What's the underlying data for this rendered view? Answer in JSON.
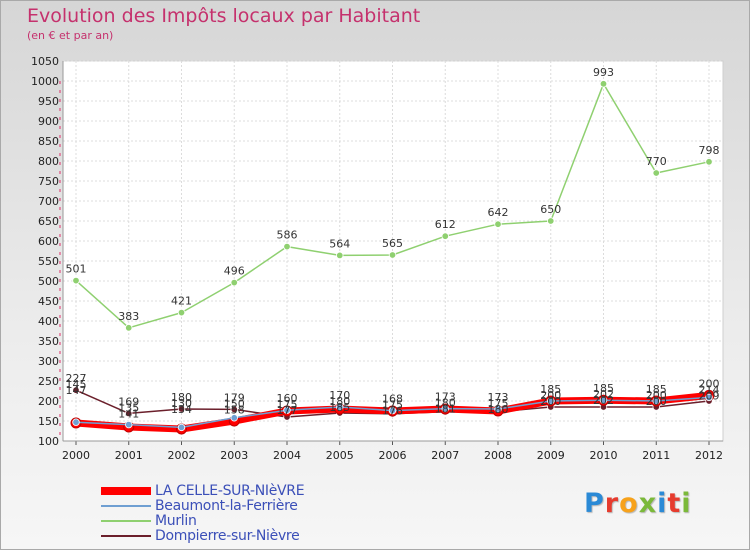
{
  "title": "Evolution des Impôts locaux par Habitant",
  "subtitle": "(en € et par an)",
  "brand": {
    "text": "Proxiti",
    "letter_colors": [
      "#2b8ad6",
      "#e63b2e",
      "#f7a21b",
      "#7bb93a",
      "#2b8ad6",
      "#e63b2e",
      "#7bb93a"
    ]
  },
  "chart_data": {
    "type": "line",
    "title": "Evolution des Impôts locaux par Habitant",
    "subtitle": "(en € et par an)",
    "xlabel": "",
    "ylabel": "",
    "x": [
      "2000",
      "2001",
      "2002",
      "2003",
      "2004",
      "2005",
      "2006",
      "2007",
      "2008",
      "2009",
      "2010",
      "2011",
      "2012"
    ],
    "ylim": [
      100,
      1050
    ],
    "yticks": [
      "100",
      "150",
      "200",
      "250",
      "300",
      "350",
      "400",
      "450",
      "500",
      "550",
      "600",
      "650",
      "700",
      "750",
      "800",
      "850",
      "900",
      "950",
      "1000",
      "1050"
    ],
    "grid": true,
    "legend_position": "bottom-left",
    "series": [
      {
        "name": "LA CELLE-SUR-NIèVRE",
        "color": "#ff0000",
        "weight": "heavy",
        "values": [
          145,
          135,
          130,
          150,
          175,
          180,
          175,
          180,
          175,
          200,
          202,
          200,
          214
        ],
        "labels": [
          "145",
          "135",
          "130",
          "150",
          "175",
          "180",
          "175",
          "180",
          "175",
          "200",
          "202",
          "200",
          "214"
        ]
      },
      {
        "name": "Beaumont-la-Ferrière",
        "color": "#6f9fd2",
        "weight": "normal",
        "values": [
          147,
          141,
          134,
          158,
          177,
          185,
          176,
          181,
          180,
          200,
          202,
          200,
          209
        ],
        "labels": [
          "147",
          "141",
          "134",
          "158",
          "177",
          "185",
          "176",
          "181",
          "180",
          "200",
          "202",
          "200",
          "209"
        ]
      },
      {
        "name": "Murlin",
        "color": "#8fd070",
        "weight": "normal",
        "values": [
          501,
          383,
          421,
          496,
          586,
          564,
          565,
          612,
          642,
          650,
          993,
          770,
          798
        ],
        "labels": [
          "501",
          "383",
          "421",
          "496",
          "586",
          "564",
          "565",
          "612",
          "642",
          "650",
          "993",
          "770",
          "798"
        ]
      },
      {
        "name": "Dompierre-sur-Nièvre",
        "color": "#6b1f2b",
        "weight": "normal",
        "values": [
          227,
          169,
          180,
          179,
          160,
          170,
          168,
          173,
          173,
          185,
          185,
          185,
          200
        ],
        "labels": [
          "227",
          "169",
          "180",
          "179",
          "160",
          "170",
          "168",
          "173",
          "173",
          "185",
          "185",
          "185",
          "200"
        ]
      }
    ]
  }
}
